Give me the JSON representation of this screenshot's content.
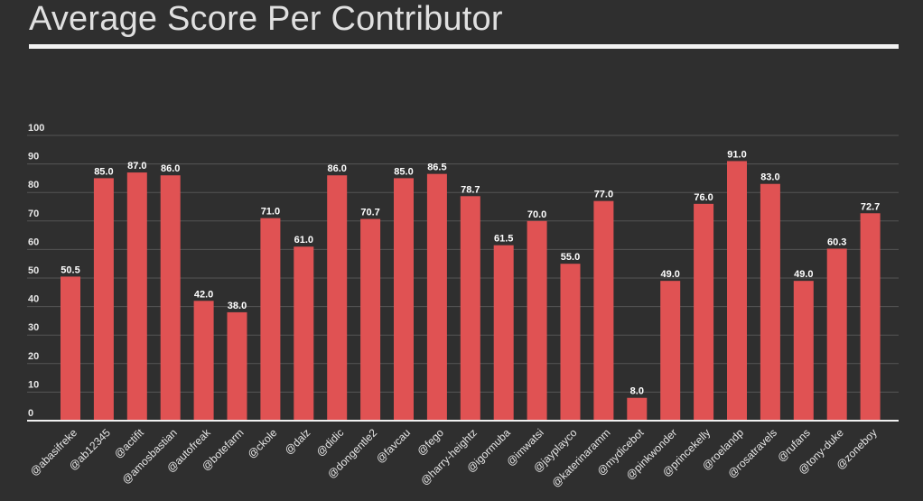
{
  "page": {
    "title": "Average Score Per Contributor"
  },
  "chart_data": {
    "type": "bar",
    "title": "Average Score Per Contributor",
    "xlabel": "",
    "ylabel": "",
    "ylim": [
      0,
      100
    ],
    "yticks": [
      "0",
      "10",
      "20",
      "30",
      "40",
      "50",
      "60",
      "70",
      "80",
      "90",
      "100"
    ],
    "grid": true,
    "bar_color": "#e05253",
    "grid_color": "#555555",
    "categories": [
      "@abasifreke",
      "@ab12345",
      "@actifit",
      "@amosbastian",
      "@autofreak",
      "@botefarm",
      "@ckole",
      "@dalz",
      "@didic",
      "@dongentle2",
      "@favcau",
      "@fego",
      "@harry-heightz",
      "@igormuba",
      "@imwatsi",
      "@jayplayco",
      "@katerinaramm",
      "@mydicebot",
      "@pinkwonder",
      "@princekelly",
      "@roelandp",
      "@rosatravels",
      "@rufans",
      "@tony-duke",
      "@zoneboy"
    ],
    "values": [
      50.5,
      85.0,
      87.0,
      86.0,
      42.0,
      38.0,
      71.0,
      61.0,
      86.0,
      70.7,
      85.0,
      86.5,
      78.7,
      61.5,
      70.0,
      55.0,
      77.0,
      8.0,
      49.0,
      76.0,
      91.0,
      83.0,
      49.0,
      60.3,
      72.7
    ],
    "value_labels": [
      "50.5",
      "85.0",
      "87.0",
      "86.0",
      "42.0",
      "38.0",
      "71.0",
      "61.0",
      "86.0",
      "70.7",
      "85.0",
      "86.5",
      "78.7",
      "61.5",
      "70.0",
      "55.0",
      "77.0",
      "8.0",
      "49.0",
      "76.0",
      "91.0",
      "83.0",
      "49.0",
      "60.3",
      "72.7"
    ]
  }
}
